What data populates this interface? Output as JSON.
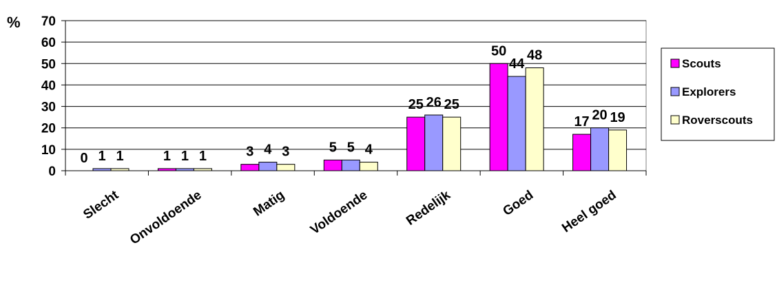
{
  "chart_data": {
    "type": "bar",
    "unit_label": "%",
    "categories": [
      "Slecht",
      "Onvoldoende",
      "Matig",
      "Voldoende",
      "Redelijk",
      "Goed",
      "Heel goed"
    ],
    "series": [
      {
        "name": "Scouts",
        "color": "#ff00ff",
        "values": [
          0,
          1,
          3,
          5,
          25,
          50,
          17
        ]
      },
      {
        "name": "Explorers",
        "color": "#9999ff",
        "values": [
          1,
          1,
          4,
          5,
          26,
          44,
          20
        ]
      },
      {
        "name": "Roverscouts",
        "color": "#ffffcc",
        "values": [
          1,
          1,
          3,
          4,
          25,
          48,
          19
        ]
      }
    ],
    "ylim": [
      0,
      70
    ],
    "yticks": [
      0,
      10,
      20,
      30,
      40,
      50,
      60,
      70
    ],
    "grid": true,
    "legend_position": "right"
  }
}
